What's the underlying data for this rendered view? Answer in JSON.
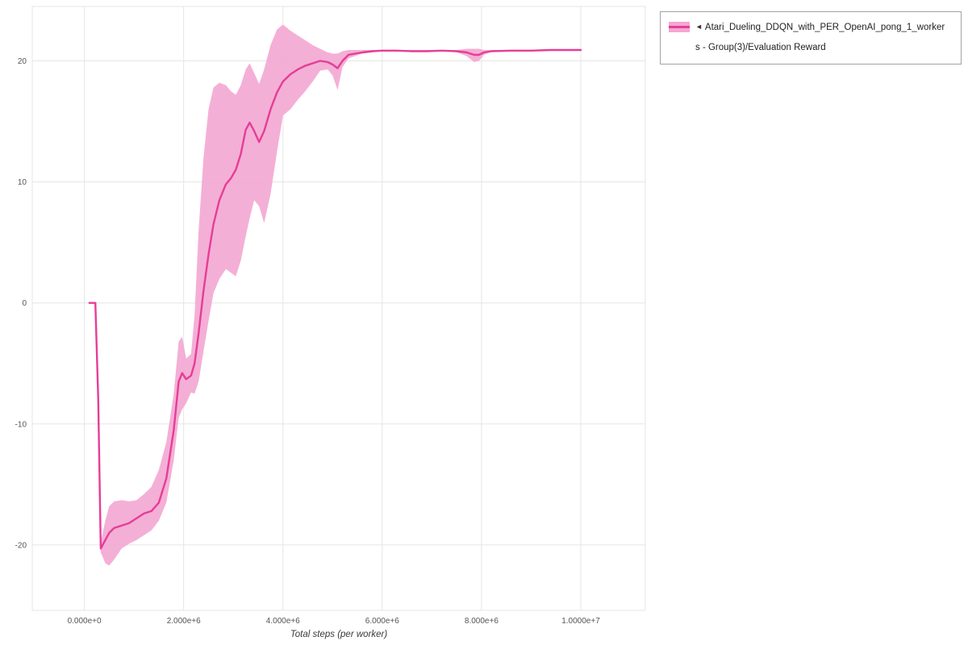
{
  "legend": {
    "collapse_icon": "◄",
    "label_line1": "Atari_Dueling_DDQN_with_PER_OpenAI_pong_1_worker",
    "label_line2": "s - Group(3)/Evaluation Reward"
  },
  "chart_data": {
    "type": "line",
    "title": "",
    "xlabel": "Total steps (per worker)",
    "ylabel": "",
    "series_name": "Atari_Dueling_DDQN_with_PER_OpenAI_pong_1_workers - Group(3)/Evaluation Reward",
    "legend_position": "top-right-outside",
    "grid": true,
    "xlim": [
      -1050000,
      11300000
    ],
    "ylim": [
      -25.4,
      24.5
    ],
    "x_ticks": [
      {
        "value": 0,
        "label": "0.000e+0"
      },
      {
        "value": 2000000,
        "label": "2.000e+6"
      },
      {
        "value": 4000000,
        "label": "4.000e+6"
      },
      {
        "value": 6000000,
        "label": "6.000e+6"
      },
      {
        "value": 8000000,
        "label": "8.000e+6"
      },
      {
        "value": 10000000,
        "label": "1.0000e+7"
      }
    ],
    "y_ticks": [
      {
        "value": 20,
        "label": "20"
      },
      {
        "value": 10,
        "label": "10"
      },
      {
        "value": 0,
        "label": "0"
      },
      {
        "value": -10,
        "label": "-10"
      },
      {
        "value": -20,
        "label": "-20"
      }
    ],
    "colors": {
      "line": "#e63d96",
      "band": "#f3a6d2",
      "grid": "#e5e5e5",
      "axis_text": "#555555"
    },
    "series": [
      {
        "name": "Atari_Dueling_DDQN_with_PER_OpenAI_pong_1_workers - Group(3)/Evaluation Reward",
        "x": [
          100000,
          220000,
          280000,
          330000,
          420000,
          500000,
          600000,
          750000,
          900000,
          1050000,
          1200000,
          1350000,
          1500000,
          1650000,
          1800000,
          1900000,
          1970000,
          2050000,
          2150000,
          2220000,
          2300000,
          2400000,
          2500000,
          2600000,
          2720000,
          2850000,
          2950000,
          3050000,
          3150000,
          3250000,
          3330000,
          3420000,
          3520000,
          3620000,
          3750000,
          3880000,
          4000000,
          4150000,
          4300000,
          4450000,
          4600000,
          4750000,
          4900000,
          5000000,
          5100000,
          5200000,
          5320000,
          5450000,
          5600000,
          5800000,
          6000000,
          6300000,
          6600000,
          6900000,
          7200000,
          7500000,
          7700000,
          7850000,
          7950000,
          8050000,
          8200000,
          8600000,
          9000000,
          9400000,
          9700000,
          10000000
        ],
        "mean": [
          0,
          0,
          -8,
          -20.3,
          -19.6,
          -19.0,
          -18.6,
          -18.4,
          -18.2,
          -17.8,
          -17.4,
          -17.2,
          -16.5,
          -14.5,
          -10.5,
          -6.5,
          -5.8,
          -6.3,
          -6.0,
          -5.0,
          -2.5,
          1.0,
          4.0,
          6.5,
          8.5,
          9.8,
          10.3,
          11.0,
          12.3,
          14.3,
          14.9,
          14.2,
          13.3,
          14.2,
          16.0,
          17.4,
          18.3,
          18.9,
          19.3,
          19.6,
          19.8,
          20.0,
          19.9,
          19.7,
          19.4,
          20.0,
          20.5,
          20.6,
          20.7,
          20.8,
          20.85,
          20.85,
          20.8,
          20.8,
          20.85,
          20.8,
          20.7,
          20.5,
          20.5,
          20.7,
          20.8,
          20.85,
          20.85,
          20.9,
          20.9,
          20.9
        ],
        "lower": [
          0,
          0,
          -8.5,
          -20.6,
          -21.5,
          -21.7,
          -21.2,
          -20.3,
          -19.9,
          -19.6,
          -19.2,
          -18.8,
          -18.0,
          -16.5,
          -13.0,
          -9.5,
          -8.8,
          -8.3,
          -7.4,
          -7.5,
          -6.5,
          -4.0,
          -1.5,
          0.8,
          2.0,
          2.8,
          2.5,
          2.2,
          3.5,
          5.5,
          7.0,
          8.5,
          8.0,
          6.6,
          9.0,
          12.5,
          15.5,
          16.0,
          16.8,
          17.5,
          18.3,
          19.2,
          19.3,
          18.8,
          17.6,
          19.5,
          20.2,
          20.4,
          20.6,
          20.7,
          20.8,
          20.8,
          20.75,
          20.75,
          20.8,
          20.7,
          20.4,
          19.9,
          20.0,
          20.5,
          20.75,
          20.8,
          20.8,
          20.85,
          20.85,
          20.85
        ],
        "upper": [
          0,
          0,
          -7.5,
          -19.8,
          -18.0,
          -16.8,
          -16.4,
          -16.3,
          -16.4,
          -16.3,
          -15.8,
          -15.2,
          -13.8,
          -11.5,
          -7.5,
          -3.2,
          -2.8,
          -4.6,
          -4.2,
          -1.0,
          6.0,
          12.0,
          16.0,
          17.8,
          18.2,
          18.0,
          17.5,
          17.2,
          18.0,
          19.3,
          19.8,
          19.0,
          18.1,
          19.3,
          21.3,
          22.6,
          23.0,
          22.5,
          22.1,
          21.7,
          21.3,
          21.0,
          20.7,
          20.6,
          20.6,
          20.8,
          20.9,
          20.9,
          20.9,
          20.9,
          20.9,
          20.9,
          20.9,
          20.9,
          20.9,
          20.9,
          21.0,
          21.0,
          21.0,
          20.9,
          20.9,
          20.9,
          20.9,
          20.95,
          20.95,
          20.95
        ]
      }
    ]
  }
}
